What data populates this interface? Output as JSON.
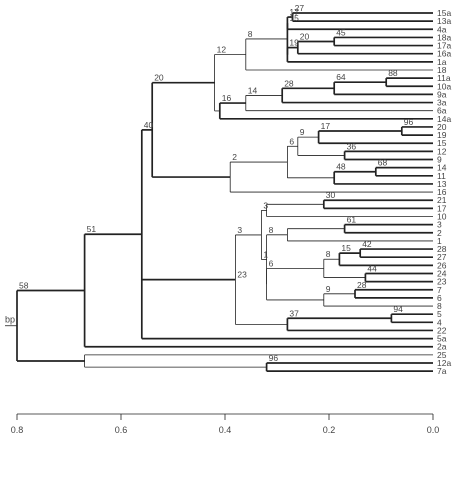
{
  "root_label": "bp",
  "axis": {
    "ticks": [
      {
        "value": 0.8,
        "label": "0.8"
      },
      {
        "value": 0.6,
        "label": "0.6"
      },
      {
        "value": 0.4,
        "label": "0.4"
      },
      {
        "value": 0.2,
        "label": "0.2"
      },
      {
        "value": 0.0,
        "label": "0.0"
      }
    ]
  },
  "leaves": [
    "15a",
    "13a",
    "4a",
    "18a",
    "17a",
    "16a",
    "1a",
    "18",
    "11a",
    "10a",
    "9a",
    "3a",
    "6a",
    "14a",
    "20",
    "19",
    "15",
    "12",
    "9",
    "14",
    "11",
    "13",
    "16",
    "21",
    "17",
    "10",
    "3",
    "2",
    "1",
    "28",
    "27",
    "26",
    "24",
    "23",
    "7",
    "6",
    "8",
    "5",
    "4",
    "22",
    "5a",
    "2a",
    "25",
    "12a",
    "7a"
  ],
  "tree": {
    "h": 0.8,
    "support": "58",
    "children": [
      {
        "h": 0.67,
        "support": "51",
        "children": [
          {
            "h": 0.56,
            "support": "40",
            "children": [
              {
                "h": 0.54,
                "support": "20",
                "children": [
                  {
                    "h": 0.42,
                    "support": "12",
                    "children": [
                      {
                        "h": 0.36,
                        "support": "8",
                        "children": [
                          {
                            "h": 0.28,
                            "support": "15",
                            "children": [
                              {
                                "h": 0.28,
                                "support": "17",
                                "children": [
                                  {
                                    "h": 0.27,
                                    "support": "27",
                                    "children": [
                                      {
                                        "leaf": 0
                                      },
                                      {
                                        "leaf": 1
                                      }
                                    ]
                                  },
                                  {
                                    "leaf": 2
                                  }
                                ]
                              },
                              {
                                "h": 0.28,
                                "support": "19",
                                "children": [
                                  {
                                    "h": 0.26,
                                    "support": "20",
                                    "children": [
                                      {
                                        "h": 0.19,
                                        "support": "45",
                                        "children": [
                                          {
                                            "leaf": 3
                                          },
                                          {
                                            "leaf": 4
                                          }
                                        ]
                                      },
                                      {
                                        "leaf": 5
                                      }
                                    ]
                                  },
                                  {
                                    "leaf": 6
                                  }
                                ]
                              }
                            ]
                          },
                          {
                            "leaf": 7
                          }
                        ]
                      },
                      {
                        "h": 0.41,
                        "support": "16",
                        "children": [
                          {
                            "h": 0.36,
                            "support": "14",
                            "children": [
                              {
                                "h": 0.29,
                                "support": "28",
                                "children": [
                                  {
                                    "h": 0.19,
                                    "support": "64",
                                    "children": [
                                      {
                                        "h": 0.09,
                                        "support": "88",
                                        "children": [
                                          {
                                            "leaf": 8
                                          },
                                          {
                                            "leaf": 9
                                          }
                                        ]
                                      },
                                      {
                                        "leaf": 10
                                      }
                                    ]
                                  },
                                  {
                                    "leaf": 11
                                  }
                                ]
                              },
                              {
                                "leaf": 12
                              }
                            ]
                          },
                          {
                            "leaf": 13
                          }
                        ]
                      }
                    ]
                  },
                  {
                    "h": 0.39,
                    "support": "2",
                    "children": [
                      {
                        "h": 0.28,
                        "support": "6",
                        "children": [
                          {
                            "h": 0.26,
                            "support": "9",
                            "children": [
                              {
                                "h": 0.22,
                                "support": "17",
                                "children": [
                                  {
                                    "h": 0.06,
                                    "support": "96",
                                    "children": [
                                      {
                                        "leaf": 14
                                      },
                                      {
                                        "leaf": 15
                                      }
                                    ]
                                  },
                                  {
                                    "leaf": 16
                                  }
                                ]
                              },
                              {
                                "h": 0.17,
                                "support": "36",
                                "children": [
                                  {
                                    "leaf": 17
                                  },
                                  {
                                    "leaf": 18
                                  }
                                ]
                              }
                            ]
                          },
                          {
                            "h": 0.19,
                            "support": "48",
                            "children": [
                              {
                                "h": 0.11,
                                "support": "68",
                                "children": [
                                  {
                                    "leaf": 19
                                  },
                                  {
                                    "leaf": 20
                                  }
                                ]
                              },
                              {
                                "leaf": 21
                              }
                            ]
                          }
                        ]
                      },
                      {
                        "leaf": 22
                      }
                    ]
                  }
                ]
              },
              {
                "h": 0.38,
                "support": "23",
                "children": [
                  {
                    "h": 0.38,
                    "support": "3",
                    "children": [
                      {
                        "h": 0.33,
                        "support": "3",
                        "children": [
                          {
                            "h": 0.32,
                            "support": "",
                            "children": [
                              {
                                "h": 0.21,
                                "support": "30",
                                "children": [
                                  {
                                    "leaf": 23
                                  },
                                  {
                                    "leaf": 24
                                  }
                                ]
                              },
                              {
                                "leaf": 25
                              }
                            ]
                          },
                          {
                            "h": 0.33,
                            "support": "1",
                            "children": [
                              {
                                "h": 0.32,
                                "support": "8",
                                "children": [
                                  {
                                    "h": 0.28,
                                    "support": "",
                                    "children": [
                                      {
                                        "h": 0.17,
                                        "support": "61",
                                        "children": [
                                          {
                                            "leaf": 26
                                          },
                                          {
                                            "leaf": 27
                                          }
                                        ]
                                      },
                                      {
                                        "leaf": 28
                                      }
                                    ]
                                  },
                                  {
                                    "h": 0.32,
                                    "support": "6",
                                    "children": [
                                      {
                                        "h": 0.21,
                                        "support": "8",
                                        "children": [
                                          {
                                            "h": 0.18,
                                            "support": "15",
                                            "children": [
                                              {
                                                "h": 0.14,
                                                "support": "42",
                                                "children": [
                                                  {
                                                    "leaf": 29
                                                  },
                                                  {
                                                    "leaf": 30
                                                  }
                                                ]
                                              },
                                              {
                                                "leaf": 31
                                              }
                                            ]
                                          },
                                          {
                                            "h": 0.13,
                                            "support": "44",
                                            "children": [
                                              {
                                                "leaf": 32
                                              },
                                              {
                                                "leaf": 33
                                              }
                                            ]
                                          }
                                        ]
                                      },
                                      {
                                        "h": 0.21,
                                        "support": "9",
                                        "children": [
                                          {
                                            "h": 0.15,
                                            "support": "28",
                                            "children": [
                                              {
                                                "leaf": 34
                                              },
                                              {
                                                "leaf": 35
                                              }
                                            ]
                                          },
                                          {
                                            "leaf": 36
                                          }
                                        ]
                                      }
                                    ]
                                  }
                                ]
                              }
                            ]
                          }
                        ]
                      },
                      {
                        "h": 0.28,
                        "support": "37",
                        "children": [
                          {
                            "h": 0.08,
                            "support": "94",
                            "children": [
                              {
                                "leaf": 37
                              },
                              {
                                "leaf": 38
                              }
                            ]
                          },
                          {
                            "leaf": 39
                          }
                        ]
                      }
                    ]
                  }
                ]
              },
              {
                "leaf": 40
              }
            ]
          },
          {
            "leaf": 41
          }
        ]
      },
      {
        "h": 0.67,
        "support": "",
        "children": [
          {
            "leaf": 42
          },
          {
            "h": 0.32,
            "support": "96",
            "children": [
              {
                "leaf": 43
              },
              {
                "leaf": 44
              }
            ]
          }
        ]
      }
    ]
  }
}
